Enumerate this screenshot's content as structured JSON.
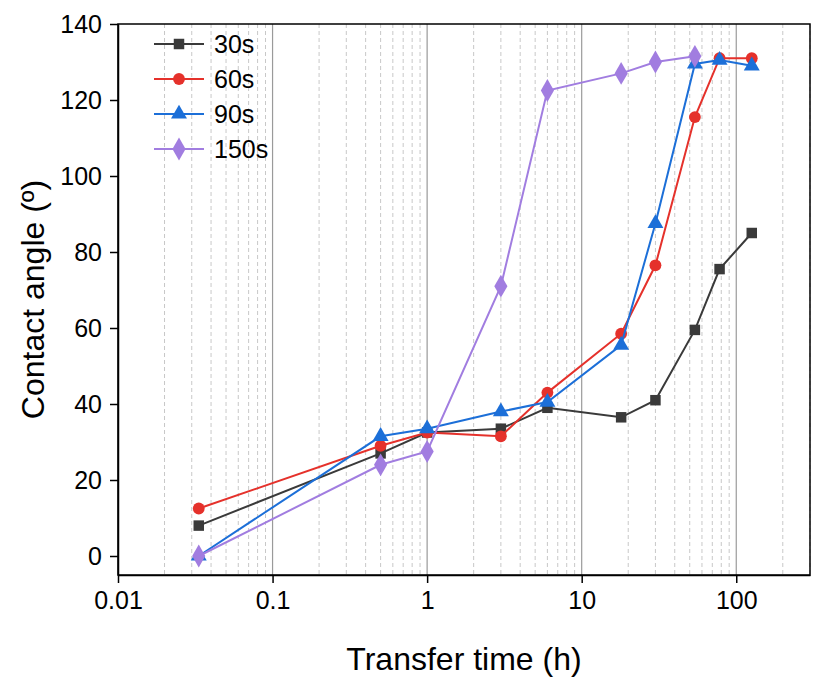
{
  "chart_data": {
    "type": "line",
    "x_label": "Transfer time (h)",
    "y_label": "Contact angle (º)",
    "log": "x",
    "grid": true,
    "legend": "top-left",
    "xlim": [
      0.01,
      300
    ],
    "xticks": [
      0.01,
      0.1,
      1,
      10,
      100
    ],
    "ylim": [
      -5,
      140
    ],
    "yticks": [
      0,
      20,
      40,
      60,
      80,
      100,
      120,
      140
    ],
    "x": [
      0.0333,
      0.5,
      1,
      3,
      6,
      18,
      30,
      54,
      78,
      126
    ],
    "series": [
      {
        "name": "30s",
        "color": "#3a3a3a",
        "marker": "square",
        "values": [
          8,
          27,
          32.5,
          33.5,
          39,
          36.5,
          41,
          59.5,
          75.5,
          85
        ]
      },
      {
        "name": "60s",
        "color": "#e5312b",
        "marker": "circle",
        "values": [
          12.5,
          29,
          32.5,
          31.5,
          43,
          58.5,
          76.5,
          115.5,
          131,
          131
        ]
      },
      {
        "name": "90s",
        "color": "#1c6fd8",
        "marker": "triangle",
        "values": [
          0,
          31.5,
          33.5,
          38,
          40.5,
          55.5,
          87.5,
          129.5,
          130.5,
          129
        ]
      },
      {
        "name": "150s",
        "color": "#a17de0",
        "marker": "diamond",
        "values": [
          0,
          24,
          27.5,
          71,
          122.5,
          127,
          130,
          131.5,
          null,
          null
        ]
      }
    ]
  }
}
